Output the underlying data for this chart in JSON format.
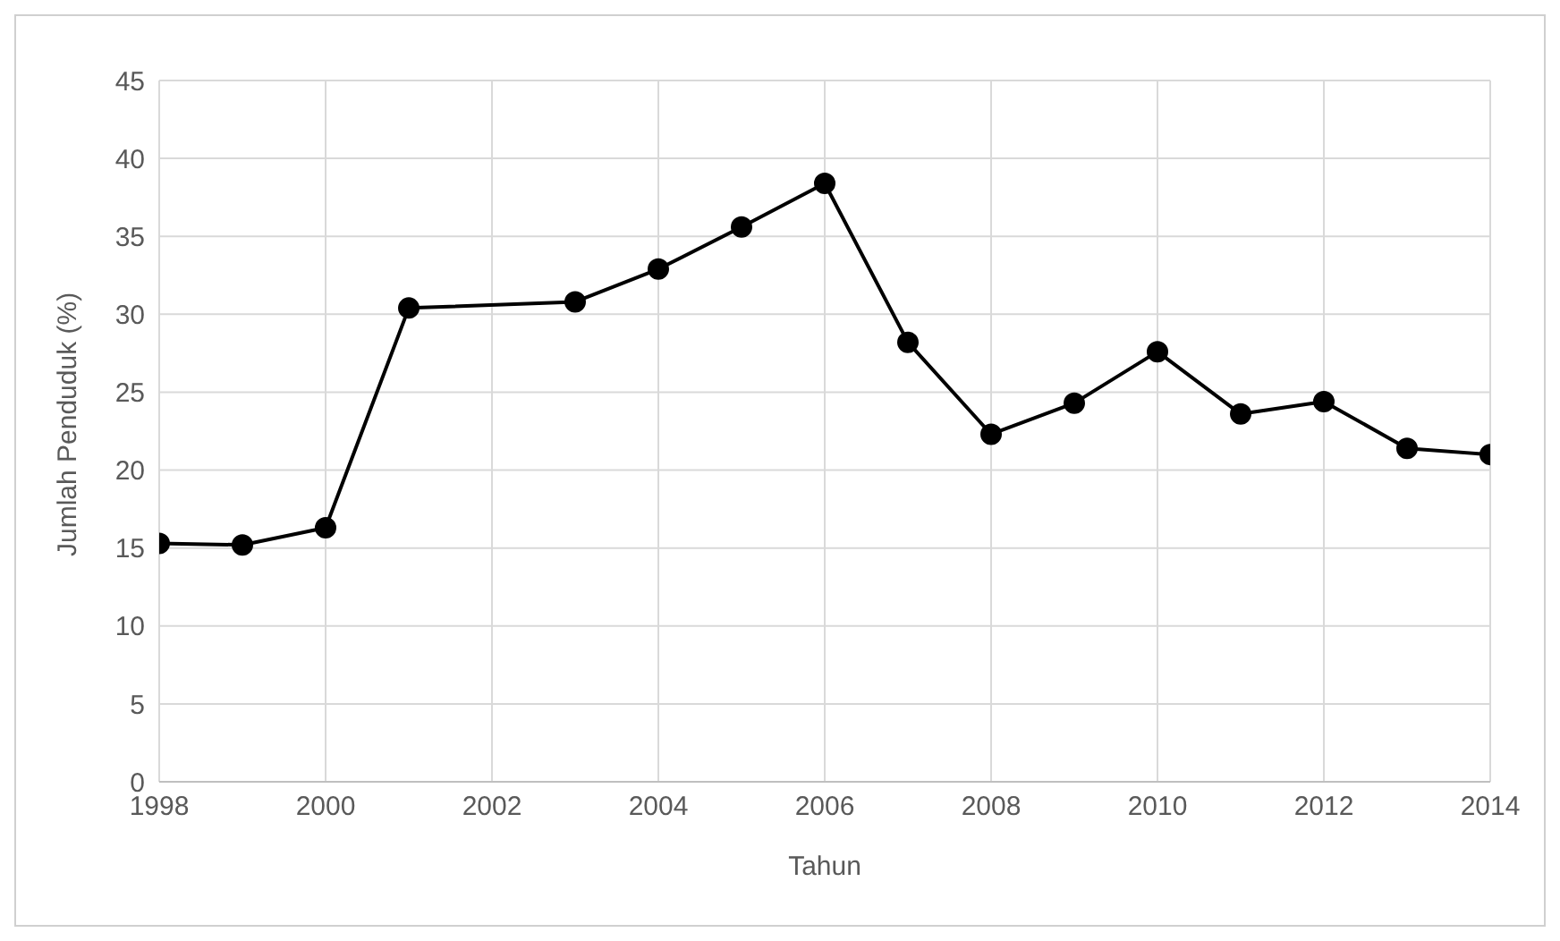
{
  "chart_data": {
    "type": "line",
    "xlabel": "Tahun",
    "ylabel": "Jumlah Penduduk (%)",
    "x": [
      1998,
      1999,
      2000,
      2001,
      2003,
      2004,
      2005,
      2006,
      2007,
      2008,
      2009,
      2010,
      2011,
      2012,
      2013,
      2014
    ],
    "series": [
      {
        "color": "#000000",
        "values": [
          15.3,
          15.2,
          16.3,
          30.4,
          30.8,
          32.9,
          35.6,
          38.4,
          28.2,
          22.3,
          24.3,
          27.6,
          23.6,
          24.4,
          21.4,
          21.0
        ]
      }
    ],
    "xlim": [
      1998,
      2014
    ],
    "xticks": [
      1998,
      2000,
      2002,
      2004,
      2006,
      2008,
      2010,
      2012,
      2014
    ],
    "ylim": [
      0,
      45
    ],
    "yticks": [
      0,
      5,
      10,
      15,
      20,
      25,
      30,
      35,
      40,
      45
    ],
    "grid": true,
    "marker": "circle",
    "line_style": "solid",
    "legend": false
  }
}
